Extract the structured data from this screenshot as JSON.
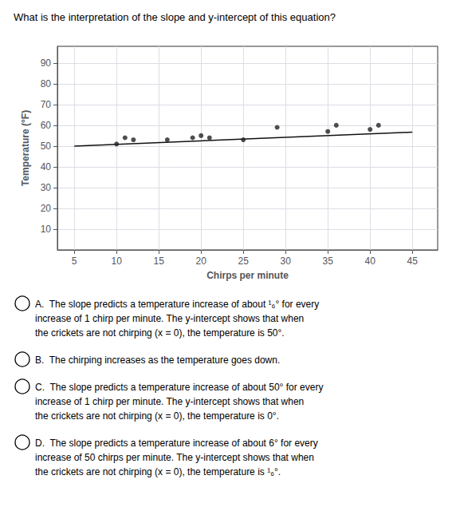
{
  "chart_data": {
    "type": "scatter",
    "title": "What is the interpretation of the slope and y‑intercept of this equation?",
    "x_label": "Chirps per minute",
    "y_label": "Temperature (°F)",
    "series": [
      {
        "type": "scatter",
        "color": "#222222",
        "x": [
          10,
          11,
          12,
          16,
          19,
          20,
          21,
          25,
          29,
          35,
          36,
          40,
          41
        ],
        "values": [
          51,
          54,
          53,
          53,
          54,
          55,
          54,
          53,
          59,
          57,
          60,
          58,
          60
        ]
      },
      {
        "type": "line",
        "color": "#111111",
        "x": [
          5,
          45
        ],
        "values": [
          50.005,
          56.685
        ]
      }
    ],
    "xlim": [
      3,
      48
    ],
    "xticks": [
      5,
      10,
      15,
      20,
      25,
      30,
      35,
      40,
      45
    ],
    "ylim": [
      0,
      98
    ],
    "yticks": [
      10,
      20,
      30,
      40,
      50,
      60,
      70,
      80,
      90
    ],
    "grid": true,
    "annotations": [
      [
        "A.  The slope predicts a temperature increase of about ¹₆° for every",
        "increase of 1 chirp per minute. The y‑intercept shows that when",
        "the crickets are not chirping (x = 0), the temperature is 50°."
      ],
      [
        "B.  The chirping increases as the temperature goes down."
      ],
      [
        "C.  The slope predicts a temperature increase of about 50° for every",
        "increase of 1 chirp per minute. The y‑intercept shows that when",
        "the crickets are not chirping (x = 0), the temperature is 0°."
      ],
      [
        "D.  The slope predicts a temperature increase of about 6° for every",
        "increase of 50 chirps per minute. The y‑intercept shows that when",
        "the crickets are not chirping (x = 0), the temperature is ¹₆°."
      ]
    ]
  }
}
